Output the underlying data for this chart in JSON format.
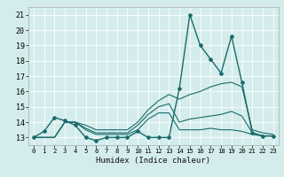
{
  "title": "",
  "xlabel": "Humidex (Indice chaleur)",
  "xlim": [
    -0.5,
    23.5
  ],
  "ylim": [
    12.5,
    21.5
  ],
  "yticks": [
    13,
    14,
    15,
    16,
    17,
    18,
    19,
    20,
    21
  ],
  "xticks": [
    0,
    1,
    2,
    3,
    4,
    5,
    6,
    7,
    8,
    9,
    10,
    11,
    12,
    13,
    14,
    15,
    16,
    17,
    18,
    19,
    20,
    21,
    22,
    23
  ],
  "bg_color": "#d4ecec",
  "grid_color": "#ffffff",
  "line_color": "#1a6b6b",
  "lines": [
    {
      "x": [
        0,
        1,
        2,
        3,
        4,
        5,
        6,
        7,
        8,
        9,
        10,
        11,
        12,
        13,
        14,
        15,
        16,
        17,
        18,
        19,
        20,
        21,
        22,
        23
      ],
      "y": [
        13,
        13.4,
        14.3,
        14.1,
        13.8,
        13.0,
        12.8,
        13.0,
        13.0,
        13.0,
        13.4,
        13.0,
        13.0,
        13.0,
        16.2,
        21.0,
        19.0,
        18.1,
        17.2,
        19.6,
        16.6,
        13.3,
        13.1,
        13.1
      ],
      "marker": "D",
      "markersize": 2.0,
      "linewidth": 1.0
    },
    {
      "x": [
        0,
        1,
        2,
        3,
        4,
        5,
        6,
        7,
        8,
        9,
        10,
        11,
        12,
        13,
        14,
        15,
        16,
        17,
        18,
        19,
        20,
        21,
        22,
        23
      ],
      "y": [
        13,
        13,
        13,
        14,
        14,
        13.8,
        13.5,
        13.5,
        13.5,
        13.5,
        14.0,
        14.8,
        15.4,
        15.8,
        15.5,
        15.8,
        16.0,
        16.3,
        16.5,
        16.6,
        16.3,
        13.5,
        13.3,
        13.2
      ],
      "marker": null,
      "markersize": 0,
      "linewidth": 0.8
    },
    {
      "x": [
        0,
        1,
        2,
        3,
        4,
        5,
        6,
        7,
        8,
        9,
        10,
        11,
        12,
        13,
        14,
        15,
        16,
        17,
        18,
        19,
        20,
        21,
        22,
        23
      ],
      "y": [
        13,
        13,
        13,
        14,
        14,
        13.6,
        13.3,
        13.3,
        13.3,
        13.3,
        13.8,
        14.5,
        15.0,
        15.2,
        14.0,
        14.2,
        14.3,
        14.4,
        14.5,
        14.7,
        14.4,
        13.3,
        13.1,
        13.1
      ],
      "marker": null,
      "markersize": 0,
      "linewidth": 0.8
    },
    {
      "x": [
        0,
        1,
        2,
        3,
        4,
        5,
        6,
        7,
        8,
        9,
        10,
        11,
        12,
        13,
        14,
        15,
        16,
        17,
        18,
        19,
        20,
        21,
        22,
        23
      ],
      "y": [
        13,
        13,
        13,
        14,
        14,
        13.5,
        13.2,
        13.2,
        13.2,
        13.2,
        13.5,
        14.2,
        14.6,
        14.6,
        13.5,
        13.5,
        13.5,
        13.6,
        13.5,
        13.5,
        13.4,
        13.2,
        13.1,
        13.1
      ],
      "marker": null,
      "markersize": 0,
      "linewidth": 0.8
    }
  ]
}
